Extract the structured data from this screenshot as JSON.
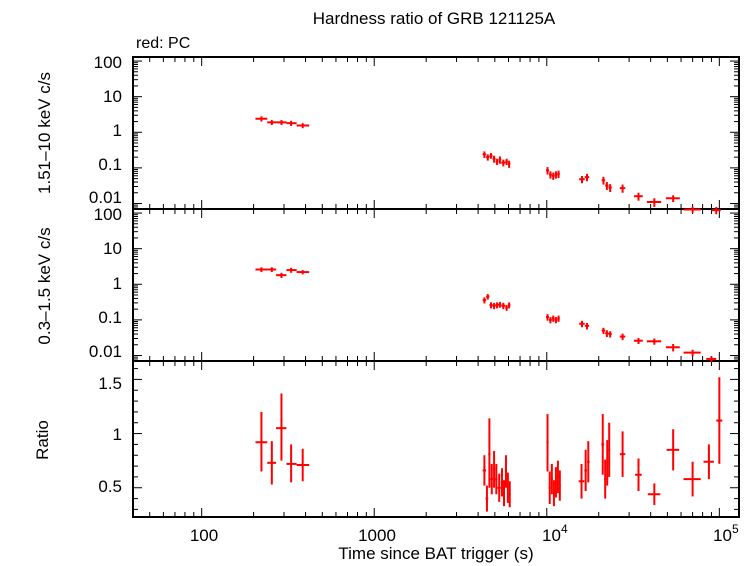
{
  "title": "Hardness ratio of GRB 121125A",
  "legend_note": "red: PC",
  "x_axis_label": "Time since BAT trigger (s)",
  "x_tick_labels": [
    "100",
    "1000",
    "10",
    "4",
    "10",
    "5"
  ],
  "panels": [
    {
      "ylabel": "1.51–10 keV c/s",
      "tick_labels": [
        "100",
        "10",
        "1",
        "0.1",
        "0.01"
      ]
    },
    {
      "ylabel": "0.3–1.5 keV c/s",
      "tick_labels": [
        "100",
        "10",
        "1",
        "0.1",
        "0.01"
      ]
    },
    {
      "ylabel": "Ratio",
      "tick_labels": [
        "1.5",
        "1",
        "0.5"
      ]
    }
  ],
  "colors": {
    "data": "#ff0000",
    "axes": "#000000"
  },
  "chart_data": [
    {
      "type": "scatter",
      "panel": "hard",
      "x_scale": "log",
      "y_scale": "log",
      "xlim": [
        40,
        130000
      ],
      "ylim": [
        0.007,
        130
      ],
      "ylabel": "1.51–10 keV c/s",
      "points": [
        {
          "x": 222,
          "y": 2.4,
          "xlo": 205,
          "xhi": 240,
          "ylo": 2.0,
          "yhi": 2.8
        },
        {
          "x": 255,
          "y": 1.9,
          "xlo": 240,
          "xhi": 270,
          "ylo": 1.6,
          "yhi": 2.2
        },
        {
          "x": 290,
          "y": 1.9,
          "xlo": 270,
          "xhi": 310,
          "ylo": 1.6,
          "yhi": 2.2
        },
        {
          "x": 330,
          "y": 1.8,
          "xlo": 310,
          "xhi": 355,
          "ylo": 1.5,
          "yhi": 2.1
        },
        {
          "x": 385,
          "y": 1.55,
          "xlo": 355,
          "xhi": 420,
          "ylo": 1.3,
          "yhi": 1.8
        },
        {
          "x": 4350,
          "y": 0.24,
          "xlo": 4250,
          "xhi": 4450,
          "ylo": 0.19,
          "yhi": 0.29
        },
        {
          "x": 4550,
          "y": 0.2,
          "xlo": 4450,
          "xhi": 4650,
          "ylo": 0.16,
          "yhi": 0.24
        },
        {
          "x": 4750,
          "y": 0.22,
          "xlo": 4650,
          "xhi": 4850,
          "ylo": 0.18,
          "yhi": 0.26
        },
        {
          "x": 4950,
          "y": 0.18,
          "xlo": 4850,
          "xhi": 5050,
          "ylo": 0.14,
          "yhi": 0.22
        },
        {
          "x": 5150,
          "y": 0.15,
          "xlo": 5050,
          "xhi": 5250,
          "ylo": 0.12,
          "yhi": 0.18
        },
        {
          "x": 5350,
          "y": 0.17,
          "xlo": 5250,
          "xhi": 5450,
          "ylo": 0.13,
          "yhi": 0.21
        },
        {
          "x": 5600,
          "y": 0.14,
          "xlo": 5450,
          "xhi": 5750,
          "ylo": 0.11,
          "yhi": 0.17
        },
        {
          "x": 5850,
          "y": 0.15,
          "xlo": 5750,
          "xhi": 5950,
          "ylo": 0.12,
          "yhi": 0.18
        },
        {
          "x": 6050,
          "y": 0.13,
          "xlo": 5950,
          "xhi": 6150,
          "ylo": 0.1,
          "yhi": 0.16
        },
        {
          "x": 10100,
          "y": 0.085,
          "xlo": 9900,
          "xhi": 10300,
          "ylo": 0.065,
          "yhi": 0.105
        },
        {
          "x": 10500,
          "y": 0.065,
          "xlo": 10300,
          "xhi": 10700,
          "ylo": 0.05,
          "yhi": 0.08
        },
        {
          "x": 10900,
          "y": 0.06,
          "xlo": 10700,
          "xhi": 11100,
          "ylo": 0.046,
          "yhi": 0.074
        },
        {
          "x": 11300,
          "y": 0.065,
          "xlo": 11100,
          "xhi": 11500,
          "ylo": 0.05,
          "yhi": 0.08
        },
        {
          "x": 11700,
          "y": 0.068,
          "xlo": 11500,
          "xhi": 11900,
          "ylo": 0.052,
          "yhi": 0.084
        },
        {
          "x": 16000,
          "y": 0.048,
          "xlo": 15400,
          "xhi": 16600,
          "ylo": 0.037,
          "yhi": 0.059
        },
        {
          "x": 17100,
          "y": 0.055,
          "xlo": 16600,
          "xhi": 17600,
          "ylo": 0.042,
          "yhi": 0.068
        },
        {
          "x": 21300,
          "y": 0.045,
          "xlo": 20800,
          "xhi": 21800,
          "ylo": 0.034,
          "yhi": 0.056
        },
        {
          "x": 22300,
          "y": 0.032,
          "xlo": 21800,
          "xhi": 22800,
          "ylo": 0.024,
          "yhi": 0.04
        },
        {
          "x": 23300,
          "y": 0.028,
          "xlo": 22800,
          "xhi": 23800,
          "ylo": 0.021,
          "yhi": 0.035
        },
        {
          "x": 27500,
          "y": 0.027,
          "xlo": 26500,
          "xhi": 28500,
          "ylo": 0.02,
          "yhi": 0.034
        },
        {
          "x": 34000,
          "y": 0.016,
          "xlo": 32000,
          "xhi": 36000,
          "ylo": 0.012,
          "yhi": 0.02
        },
        {
          "x": 42000,
          "y": 0.011,
          "xlo": 38000,
          "xhi": 46000,
          "ylo": 0.008,
          "yhi": 0.014
        },
        {
          "x": 54000,
          "y": 0.014,
          "xlo": 49000,
          "xhi": 59000,
          "ylo": 0.011,
          "yhi": 0.017
        },
        {
          "x": 70000,
          "y": 0.0068,
          "xlo": 62000,
          "xhi": 78000,
          "ylo": 0.0055,
          "yhi": 0.0081
        },
        {
          "x": 96000,
          "y": 0.0065,
          "xlo": 90000,
          "xhi": 102000,
          "ylo": 0.005,
          "yhi": 0.008
        }
      ]
    },
    {
      "type": "scatter",
      "panel": "soft",
      "x_scale": "log",
      "y_scale": "log",
      "xlim": [
        40,
        130000
      ],
      "ylim": [
        0.007,
        130
      ],
      "ylabel": "0.3–1.5 keV c/s",
      "points": [
        {
          "x": 222,
          "y": 2.6,
          "xlo": 205,
          "xhi": 240,
          "ylo": 2.2,
          "yhi": 3.0
        },
        {
          "x": 255,
          "y": 2.6,
          "xlo": 240,
          "xhi": 270,
          "ylo": 2.2,
          "yhi": 3.0
        },
        {
          "x": 290,
          "y": 1.8,
          "xlo": 270,
          "xhi": 310,
          "ylo": 1.5,
          "yhi": 2.1
        },
        {
          "x": 330,
          "y": 2.5,
          "xlo": 310,
          "xhi": 355,
          "ylo": 2.1,
          "yhi": 2.9
        },
        {
          "x": 385,
          "y": 2.2,
          "xlo": 355,
          "xhi": 420,
          "ylo": 1.9,
          "yhi": 2.5
        },
        {
          "x": 4350,
          "y": 0.36,
          "xlo": 4250,
          "xhi": 4450,
          "ylo": 0.29,
          "yhi": 0.43
        },
        {
          "x": 4550,
          "y": 0.45,
          "xlo": 4450,
          "xhi": 4650,
          "ylo": 0.37,
          "yhi": 0.53
        },
        {
          "x": 4750,
          "y": 0.26,
          "xlo": 4650,
          "xhi": 4850,
          "ylo": 0.21,
          "yhi": 0.31
        },
        {
          "x": 4950,
          "y": 0.25,
          "xlo": 4850,
          "xhi": 5050,
          "ylo": 0.2,
          "yhi": 0.3
        },
        {
          "x": 5150,
          "y": 0.26,
          "xlo": 5050,
          "xhi": 5250,
          "ylo": 0.21,
          "yhi": 0.31
        },
        {
          "x": 5350,
          "y": 0.27,
          "xlo": 5250,
          "xhi": 5450,
          "ylo": 0.22,
          "yhi": 0.32
        },
        {
          "x": 5600,
          "y": 0.25,
          "xlo": 5450,
          "xhi": 5750,
          "ylo": 0.2,
          "yhi": 0.3
        },
        {
          "x": 5850,
          "y": 0.22,
          "xlo": 5750,
          "xhi": 5950,
          "ylo": 0.18,
          "yhi": 0.26
        },
        {
          "x": 6050,
          "y": 0.26,
          "xlo": 5950,
          "xhi": 6150,
          "ylo": 0.21,
          "yhi": 0.31
        },
        {
          "x": 10100,
          "y": 0.12,
          "xlo": 9900,
          "xhi": 10300,
          "ylo": 0.095,
          "yhi": 0.145
        },
        {
          "x": 10500,
          "y": 0.1,
          "xlo": 10300,
          "xhi": 10700,
          "ylo": 0.08,
          "yhi": 0.12
        },
        {
          "x": 10900,
          "y": 0.11,
          "xlo": 10700,
          "xhi": 11100,
          "ylo": 0.088,
          "yhi": 0.132
        },
        {
          "x": 11300,
          "y": 0.1,
          "xlo": 11100,
          "xhi": 11500,
          "ylo": 0.08,
          "yhi": 0.12
        },
        {
          "x": 11700,
          "y": 0.11,
          "xlo": 11500,
          "xhi": 11900,
          "ylo": 0.088,
          "yhi": 0.132
        },
        {
          "x": 16000,
          "y": 0.078,
          "xlo": 15400,
          "xhi": 16600,
          "ylo": 0.062,
          "yhi": 0.094
        },
        {
          "x": 17100,
          "y": 0.068,
          "xlo": 16600,
          "xhi": 17600,
          "ylo": 0.054,
          "yhi": 0.082
        },
        {
          "x": 21300,
          "y": 0.05,
          "xlo": 20800,
          "xhi": 21800,
          "ylo": 0.04,
          "yhi": 0.06
        },
        {
          "x": 22300,
          "y": 0.042,
          "xlo": 21800,
          "xhi": 22800,
          "ylo": 0.033,
          "yhi": 0.051
        },
        {
          "x": 23300,
          "y": 0.04,
          "xlo": 22800,
          "xhi": 23800,
          "ylo": 0.032,
          "yhi": 0.048
        },
        {
          "x": 27500,
          "y": 0.034,
          "xlo": 26500,
          "xhi": 28500,
          "ylo": 0.027,
          "yhi": 0.041
        },
        {
          "x": 34000,
          "y": 0.026,
          "xlo": 32000,
          "xhi": 36000,
          "ylo": 0.021,
          "yhi": 0.031
        },
        {
          "x": 42000,
          "y": 0.025,
          "xlo": 38000,
          "xhi": 46000,
          "ylo": 0.02,
          "yhi": 0.03
        },
        {
          "x": 54000,
          "y": 0.017,
          "xlo": 49000,
          "xhi": 59000,
          "ylo": 0.013,
          "yhi": 0.021
        },
        {
          "x": 70000,
          "y": 0.012,
          "xlo": 62000,
          "xhi": 78000,
          "ylo": 0.0095,
          "yhi": 0.0145
        },
        {
          "x": 90000,
          "y": 0.008,
          "xlo": 84000,
          "xhi": 96000,
          "ylo": 0.0065,
          "yhi": 0.0095
        }
      ]
    },
    {
      "type": "scatter",
      "panel": "ratio",
      "x_scale": "log",
      "y_scale": "linear",
      "xlim": [
        40,
        130000
      ],
      "ylim": [
        0.23,
        1.67
      ],
      "ylabel": "Ratio",
      "points": [
        {
          "x": 222,
          "y": 0.92,
          "xlo": 205,
          "xhi": 240,
          "ylo": 0.65,
          "yhi": 1.2
        },
        {
          "x": 255,
          "y": 0.73,
          "xlo": 240,
          "xhi": 270,
          "ylo": 0.53,
          "yhi": 0.93
        },
        {
          "x": 290,
          "y": 1.05,
          "xlo": 270,
          "xhi": 310,
          "ylo": 0.75,
          "yhi": 1.37
        },
        {
          "x": 330,
          "y": 0.72,
          "xlo": 310,
          "xhi": 355,
          "ylo": 0.55,
          "yhi": 0.9
        },
        {
          "x": 385,
          "y": 0.71,
          "xlo": 355,
          "xhi": 420,
          "ylo": 0.56,
          "yhi": 0.86
        },
        {
          "x": 4350,
          "y": 0.66,
          "xlo": 4250,
          "xhi": 4450,
          "ylo": 0.52,
          "yhi": 0.8
        },
        {
          "x": 4500,
          "y": 0.4,
          "xlo": 4420,
          "xhi": 4580,
          "ylo": 0.28,
          "yhi": 0.52
        },
        {
          "x": 4650,
          "y": 0.81,
          "xlo": 4580,
          "xhi": 4720,
          "ylo": 0.5,
          "yhi": 1.14
        },
        {
          "x": 4800,
          "y": 0.58,
          "xlo": 4720,
          "xhi": 4880,
          "ylo": 0.44,
          "yhi": 0.72
        },
        {
          "x": 4950,
          "y": 0.67,
          "xlo": 4880,
          "xhi": 5020,
          "ylo": 0.5,
          "yhi": 0.84
        },
        {
          "x": 5100,
          "y": 0.58,
          "xlo": 5020,
          "xhi": 5180,
          "ylo": 0.44,
          "yhi": 0.72
        },
        {
          "x": 5300,
          "y": 0.5,
          "xlo": 5180,
          "xhi": 5420,
          "ylo": 0.37,
          "yhi": 0.63
        },
        {
          "x": 5500,
          "y": 0.55,
          "xlo": 5420,
          "xhi": 5580,
          "ylo": 0.42,
          "yhi": 0.68
        },
        {
          "x": 5650,
          "y": 0.45,
          "xlo": 5580,
          "xhi": 5720,
          "ylo": 0.33,
          "yhi": 0.57
        },
        {
          "x": 5800,
          "y": 0.65,
          "xlo": 5720,
          "xhi": 5880,
          "ylo": 0.5,
          "yhi": 0.8
        },
        {
          "x": 5950,
          "y": 0.5,
          "xlo": 5880,
          "xhi": 6020,
          "ylo": 0.36,
          "yhi": 0.64
        },
        {
          "x": 6100,
          "y": 0.44,
          "xlo": 6020,
          "xhi": 6180,
          "ylo": 0.32,
          "yhi": 0.56
        },
        {
          "x": 10100,
          "y": 0.92,
          "xlo": 9950,
          "xhi": 10250,
          "ylo": 0.65,
          "yhi": 1.18
        },
        {
          "x": 10400,
          "y": 0.5,
          "xlo": 10250,
          "xhi": 10550,
          "ylo": 0.35,
          "yhi": 0.65
        },
        {
          "x": 10700,
          "y": 0.58,
          "xlo": 10550,
          "xhi": 10850,
          "ylo": 0.44,
          "yhi": 0.72
        },
        {
          "x": 11000,
          "y": 0.45,
          "xlo": 10850,
          "xhi": 11150,
          "ylo": 0.33,
          "yhi": 0.57
        },
        {
          "x": 11300,
          "y": 0.55,
          "xlo": 11150,
          "xhi": 11450,
          "ylo": 0.41,
          "yhi": 0.69
        },
        {
          "x": 11600,
          "y": 0.6,
          "xlo": 11450,
          "xhi": 11750,
          "ylo": 0.45,
          "yhi": 0.75
        },
        {
          "x": 11900,
          "y": 0.52,
          "xlo": 11750,
          "xhi": 12050,
          "ylo": 0.38,
          "yhi": 0.66
        },
        {
          "x": 15900,
          "y": 0.56,
          "xlo": 15300,
          "xhi": 16500,
          "ylo": 0.4,
          "yhi": 0.72
        },
        {
          "x": 16800,
          "y": 0.66,
          "xlo": 16500,
          "xhi": 17100,
          "ylo": 0.47,
          "yhi": 0.85
        },
        {
          "x": 17400,
          "y": 0.74,
          "xlo": 17100,
          "xhi": 17700,
          "ylo": 0.55,
          "yhi": 0.93
        },
        {
          "x": 21100,
          "y": 0.9,
          "xlo": 20700,
          "xhi": 21500,
          "ylo": 0.62,
          "yhi": 1.18
        },
        {
          "x": 21800,
          "y": 0.58,
          "xlo": 21500,
          "xhi": 22100,
          "ylo": 0.4,
          "yhi": 0.76
        },
        {
          "x": 22400,
          "y": 0.73,
          "xlo": 22100,
          "xhi": 22700,
          "ylo": 0.52,
          "yhi": 0.94
        },
        {
          "x": 23000,
          "y": 0.85,
          "xlo": 22700,
          "xhi": 23300,
          "ylo": 0.6,
          "yhi": 1.1
        },
        {
          "x": 27500,
          "y": 0.81,
          "xlo": 26500,
          "xhi": 28500,
          "ylo": 0.6,
          "yhi": 1.02
        },
        {
          "x": 34000,
          "y": 0.62,
          "xlo": 32500,
          "xhi": 35500,
          "ylo": 0.47,
          "yhi": 0.77
        },
        {
          "x": 42000,
          "y": 0.44,
          "xlo": 38500,
          "xhi": 45500,
          "ylo": 0.34,
          "yhi": 0.54
        },
        {
          "x": 54000,
          "y": 0.85,
          "xlo": 49500,
          "xhi": 58500,
          "ylo": 0.66,
          "yhi": 1.04
        },
        {
          "x": 70000,
          "y": 0.58,
          "xlo": 62000,
          "xhi": 78000,
          "ylo": 0.42,
          "yhi": 0.74
        },
        {
          "x": 87000,
          "y": 0.74,
          "xlo": 81000,
          "xhi": 93000,
          "ylo": 0.58,
          "yhi": 0.9
        },
        {
          "x": 100000,
          "y": 1.12,
          "xlo": 96000,
          "xhi": 104000,
          "ylo": 0.72,
          "yhi": 1.52
        }
      ]
    }
  ]
}
